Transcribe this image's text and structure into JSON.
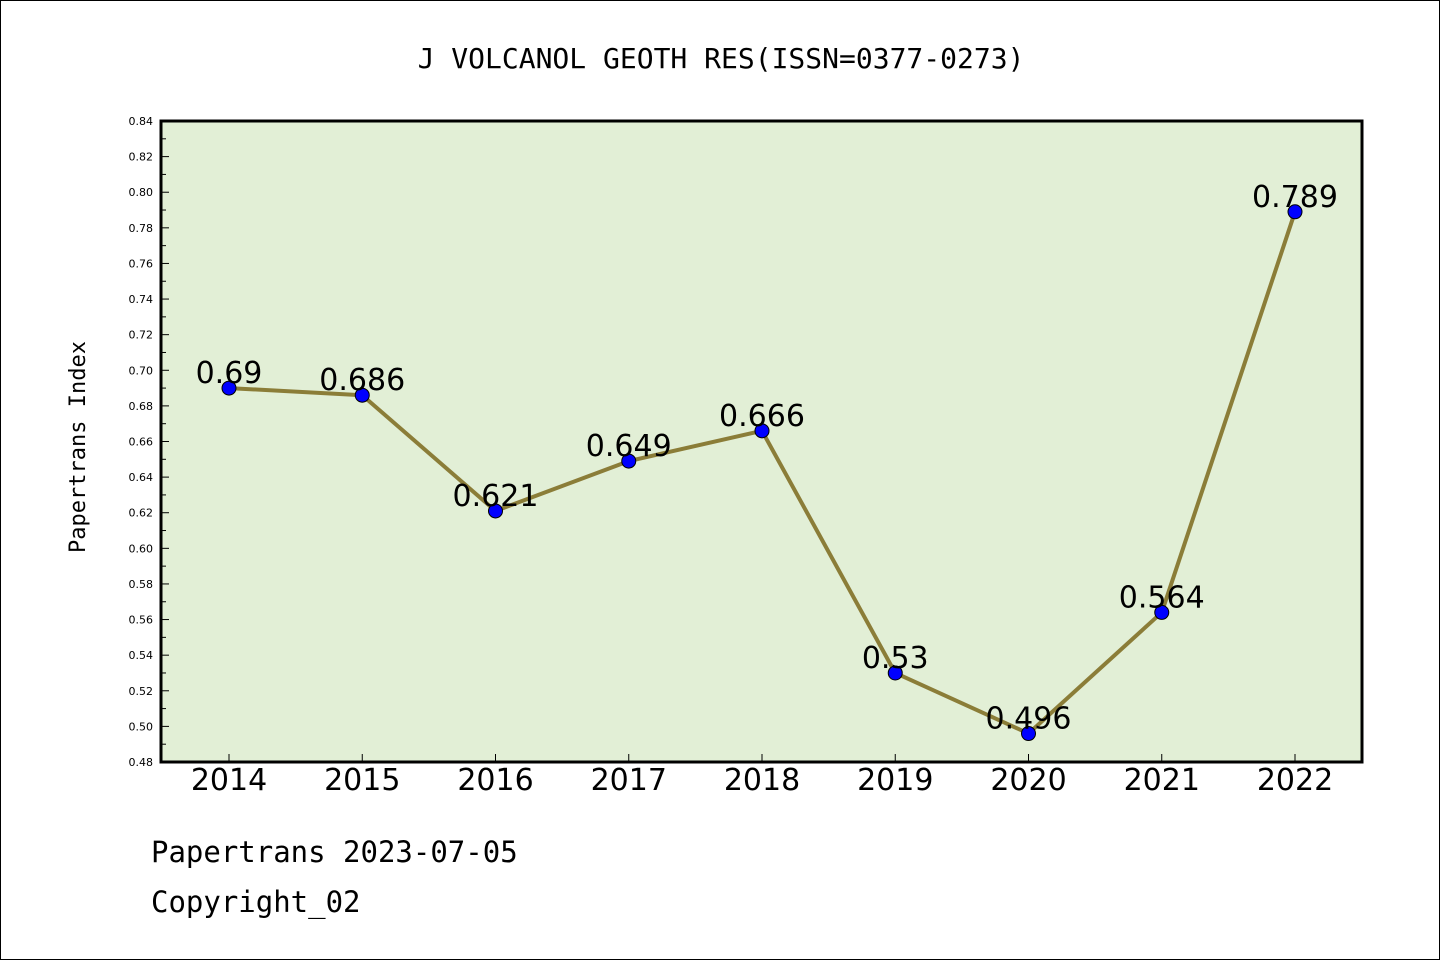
{
  "chart_data": {
    "type": "line",
    "title": "J VOLCANOL GEOTH RES(ISSN=0377-0273)",
    "xlabel": "",
    "ylabel": "Papertrans Index",
    "categories": [
      "2014",
      "2015",
      "2016",
      "2017",
      "2018",
      "2019",
      "2020",
      "2021",
      "2022"
    ],
    "values": [
      0.69,
      0.686,
      0.621,
      0.649,
      0.666,
      0.53,
      0.496,
      0.564,
      0.789
    ],
    "data_labels": [
      "0.69",
      "0.686",
      "0.621",
      "0.649",
      "0.666",
      "0.53",
      "0.496",
      "0.564",
      "0.789"
    ],
    "ylim": [
      0.48,
      0.84
    ],
    "yticks": [
      "0.48",
      "0.50",
      "0.52",
      "0.54",
      "0.56",
      "0.58",
      "0.60",
      "0.62",
      "0.64",
      "0.66",
      "0.68",
      "0.70",
      "0.72",
      "0.74",
      "0.76",
      "0.78",
      "0.80",
      "0.82",
      "0.84"
    ],
    "grid": false,
    "legend": "none",
    "colors": {
      "plot_background": "#e2efd6",
      "line": "#8b7d38",
      "marker": "#0000ff"
    }
  },
  "footer": {
    "line1": "Papertrans 2023-07-05",
    "line2": "Copyright_02"
  }
}
